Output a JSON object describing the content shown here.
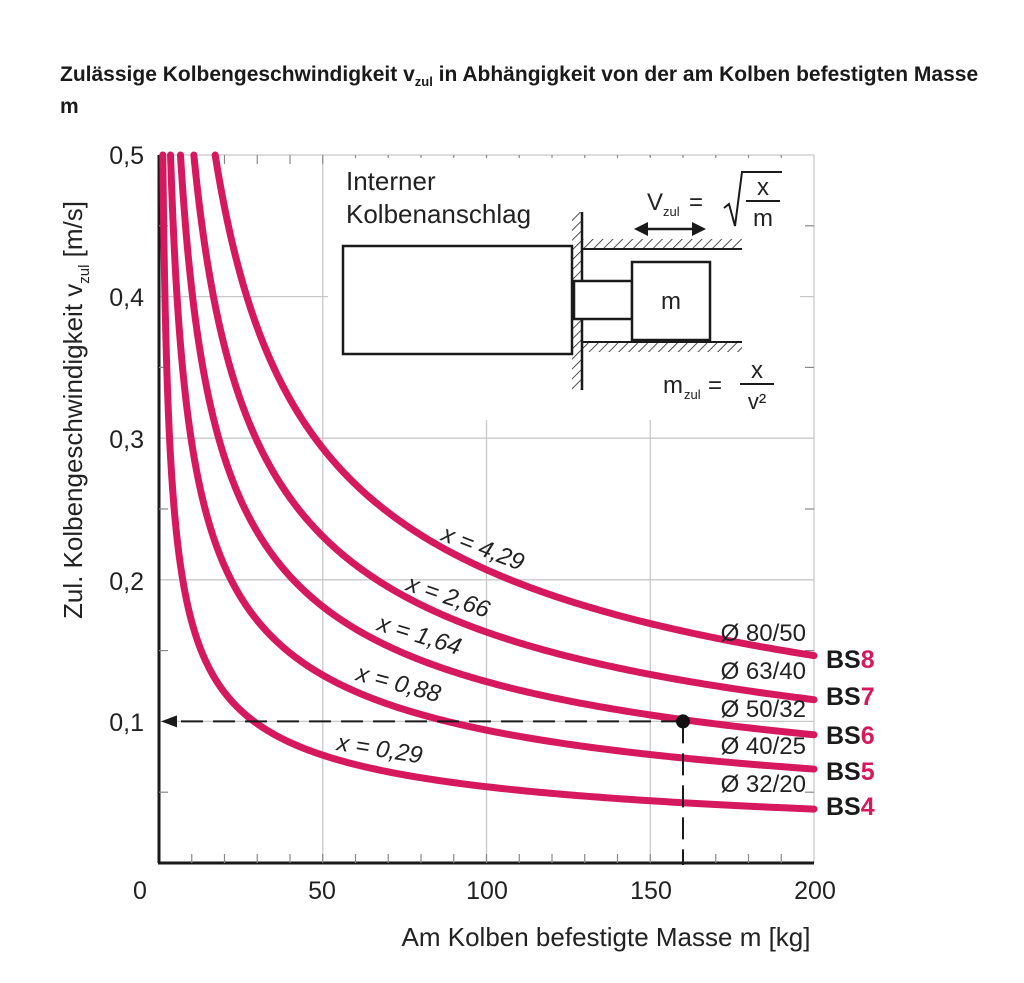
{
  "title": {
    "part1": "Zulässige Kolbengeschwindigkeit v",
    "sub": "zul",
    "part2": " in Abhängigkeit von der am Kolben befestigten Masse m"
  },
  "colors": {
    "curve": "#d6185f",
    "accent": "#d6185f",
    "text": "#222222",
    "grid": "#c8c8c8"
  },
  "chart_data": {
    "type": "line",
    "xlabel": "Am Kolben befestigte Masse m [kg]",
    "ylabel_main": "Zul. Kolbengeschwindigkeit v",
    "ylabel_sub": "zul",
    "ylabel_end": " [m/s]",
    "xlim": [
      0,
      200
    ],
    "ylim": [
      0,
      0.5
    ],
    "x_ticks": [
      "0",
      "50",
      "100",
      "150",
      "200"
    ],
    "y_ticks": [
      "0,1",
      "0,2",
      "0,3",
      "0,4",
      "0,5"
    ],
    "formula": "v = sqrt(x / m)",
    "series": [
      {
        "label": "x = 0,29",
        "x_const": 0.29,
        "diameter": "Ø 32/20",
        "bs_prefix": "BS",
        "bs_num": "4"
      },
      {
        "label": "x = 0,88",
        "x_const": 0.88,
        "diameter": "Ø 40/25",
        "bs_prefix": "BS",
        "bs_num": "5"
      },
      {
        "label": "x = 1,64",
        "x_const": 1.64,
        "diameter": "Ø 50/32",
        "bs_prefix": "BS",
        "bs_num": "6"
      },
      {
        "label": "x = 2,66",
        "x_const": 2.66,
        "diameter": "Ø 63/40",
        "bs_prefix": "BS",
        "bs_num": "7"
      },
      {
        "label": "x = 4,29",
        "x_const": 4.29,
        "diameter": "Ø 80/50",
        "bs_prefix": "BS",
        "bs_num": "8"
      }
    ],
    "example_point": {
      "m": 160,
      "v": 0.1
    },
    "inset": {
      "line1": "Interner",
      "line2": "Kolbenanschlag",
      "mass_label": "m",
      "v_formula": {
        "V": "V",
        "sub": "zul",
        "eq": "=",
        "num": "x",
        "den": "m"
      },
      "m_formula": {
        "m": "m",
        "sub": "zul",
        "eq": "=",
        "num": "x",
        "den": "v²"
      }
    }
  }
}
